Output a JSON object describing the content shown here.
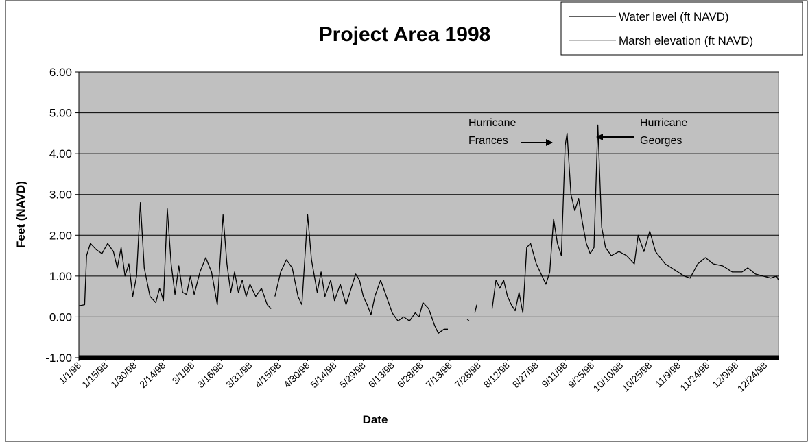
{
  "chart_data": {
    "type": "line",
    "title": "Project Area 1998",
    "x_label": "Date",
    "y_label": "Feet (NAVD)",
    "xlim": [
      "1/1/98",
      "12/31/98"
    ],
    "xticks": [
      "1/1/98",
      "1/15/98",
      "1/30/98",
      "2/14/98",
      "3/1/98",
      "3/16/98",
      "3/31/98",
      "4/15/98",
      "4/30/98",
      "5/14/98",
      "5/29/98",
      "6/13/98",
      "6/28/98",
      "7/13/98",
      "7/28/98",
      "8/12/98",
      "8/27/98",
      "9/11/98",
      "9/25/98",
      "10/10/98",
      "10/25/98",
      "11/9/98",
      "11/24/98",
      "12/9/98",
      "12/24/98"
    ],
    "ylim": [
      -1,
      6
    ],
    "yticks": [
      {
        "value": -1,
        "label": "-1.00"
      },
      {
        "value": 0,
        "label": "0.00"
      },
      {
        "value": 1,
        "label": "1.00"
      },
      {
        "value": 2,
        "label": "2.00"
      },
      {
        "value": 3,
        "label": "3.00"
      },
      {
        "value": 4,
        "label": "4.00"
      },
      {
        "value": 5,
        "label": "5.00"
      },
      {
        "value": 6,
        "label": "6.00"
      }
    ],
    "grid": true,
    "legend": "top-right",
    "x": [
      "1/1/98",
      "1/4/98",
      "1/5/98",
      "1/7/98",
      "1/10/98",
      "1/13/98",
      "1/16/98",
      "1/19/98",
      "1/21/98",
      "1/23/98",
      "1/25/98",
      "1/27/98",
      "1/29/98",
      "1/31/98",
      "2/2/98",
      "2/4/98",
      "2/7/98",
      "2/10/98",
      "2/12/98",
      "2/14/98",
      "2/16/98",
      "2/18/98",
      "2/20/98",
      "2/22/98",
      "2/24/98",
      "2/26/98",
      "2/28/98",
      "3/2/98",
      "3/5/98",
      "3/8/98",
      "3/11/98",
      "3/14/98",
      "3/17/98",
      "3/19/98",
      "3/21/98",
      "3/23/98",
      "3/25/98",
      "3/27/98",
      "3/29/98",
      "3/31/98",
      "4/3/98",
      "4/6/98",
      "4/9/98",
      "4/11/98",
      "4/12/98",
      "4/13/98",
      "4/16/98",
      "4/19/98",
      "4/22/98",
      "4/25/98",
      "4/27/98",
      "4/30/98",
      "5/2/98",
      "5/5/98",
      "5/7/98",
      "5/9/98",
      "5/12/98",
      "5/14/98",
      "5/17/98",
      "5/20/98",
      "5/22/98",
      "5/25/98",
      "5/27/98",
      "5/29/98",
      "5/31/98",
      "6/2/98",
      "6/4/98",
      "6/7/98",
      "6/10/98",
      "6/13/98",
      "6/16/98",
      "6/19/98",
      "6/22/98",
      "6/25/98",
      "6/27/98",
      "6/29/98",
      "7/2/98",
      "7/5/98",
      "7/7/98",
      "7/10/98",
      "7/12/98",
      "7/17/98",
      "7/22/98",
      "7/23/98",
      "7/25/98",
      "7/26/98",
      "7/27/98",
      "7/31/98",
      "8/4/98",
      "8/6/98",
      "8/8/98",
      "8/10/98",
      "8/12/98",
      "8/14/98",
      "8/16/98",
      "8/18/98",
      "8/20/98",
      "8/22/98",
      "8/24/98",
      "8/27/98",
      "8/30/98",
      "9/1/98",
      "9/3/98",
      "9/5/98",
      "9/7/98",
      "9/9/98",
      "9/11/98",
      "9/12/98",
      "9/14/98",
      "9/16/98",
      "9/18/98",
      "9/20/98",
      "9/22/98",
      "9/24/98",
      "9/26/98",
      "9/28/98",
      "9/30/98",
      "10/2/98",
      "10/5/98",
      "10/9/98",
      "10/13/98",
      "10/17/98",
      "10/19/98",
      "10/22/98",
      "10/25/98",
      "10/28/98",
      "11/2/98",
      "11/7/98",
      "11/12/98",
      "11/15/98",
      "11/19/98",
      "11/23/98",
      "11/27/98",
      "12/2/98",
      "12/7/98",
      "12/12/98",
      "12/15/98",
      "12/19/98",
      "12/23/98",
      "12/27/98",
      "12/30/98",
      "12/31/98"
    ],
    "series": [
      {
        "name": "Water level (ft NAVD)",
        "color": "#000000",
        "values": [
          0.27,
          0.3,
          1.5,
          1.8,
          1.65,
          1.55,
          1.8,
          1.6,
          1.2,
          1.7,
          1.0,
          1.3,
          0.5,
          1.0,
          2.8,
          1.2,
          0.5,
          0.35,
          0.7,
          0.4,
          2.65,
          1.3,
          0.55,
          1.25,
          0.6,
          0.55,
          1.0,
          0.55,
          1.1,
          1.45,
          1.1,
          0.3,
          2.5,
          1.3,
          0.6,
          1.1,
          0.6,
          0.9,
          0.5,
          0.8,
          0.5,
          0.7,
          0.3,
          0.2,
          null,
          0.5,
          1.1,
          1.4,
          1.2,
          0.5,
          0.3,
          2.5,
          1.4,
          0.6,
          1.1,
          0.5,
          0.9,
          0.4,
          0.8,
          0.3,
          0.6,
          1.05,
          0.9,
          0.5,
          0.3,
          0.05,
          0.5,
          0.9,
          0.5,
          0.1,
          -0.1,
          0.0,
          -0.1,
          0.1,
          0.0,
          0.35,
          0.2,
          -0.2,
          -0.4,
          -0.3,
          -0.3,
          null,
          -0.05,
          -0.1,
          null,
          0.1,
          0.3,
          null,
          0.2,
          0.9,
          0.7,
          0.9,
          0.5,
          0.3,
          0.15,
          0.6,
          0.1,
          1.7,
          1.8,
          1.3,
          1.0,
          0.8,
          1.1,
          2.4,
          1.8,
          1.5,
          4.2,
          4.5,
          3.0,
          2.6,
          2.9,
          2.3,
          1.8,
          1.55,
          1.7,
          4.7,
          2.2,
          1.7,
          1.5,
          1.6,
          1.5,
          1.3,
          2.0,
          1.6,
          2.1,
          1.6,
          1.3,
          1.15,
          1.0,
          0.95,
          1.3,
          1.45,
          1.3,
          1.25,
          1.1,
          1.1,
          1.2,
          1.05,
          1.0,
          0.95,
          1.0,
          0.9
        ]
      },
      {
        "name": "Marsh elevation (ft NAVD)",
        "color": "#000000",
        "x": [
          "1/1/98",
          "12/31/98"
        ],
        "values": [
          -1,
          -1
        ]
      }
    ],
    "annotations": [
      {
        "text": [
          "Hurricane",
          "Frances"
        ]
      },
      {
        "text": [
          "Hurricane",
          "Georges"
        ]
      }
    ]
  }
}
